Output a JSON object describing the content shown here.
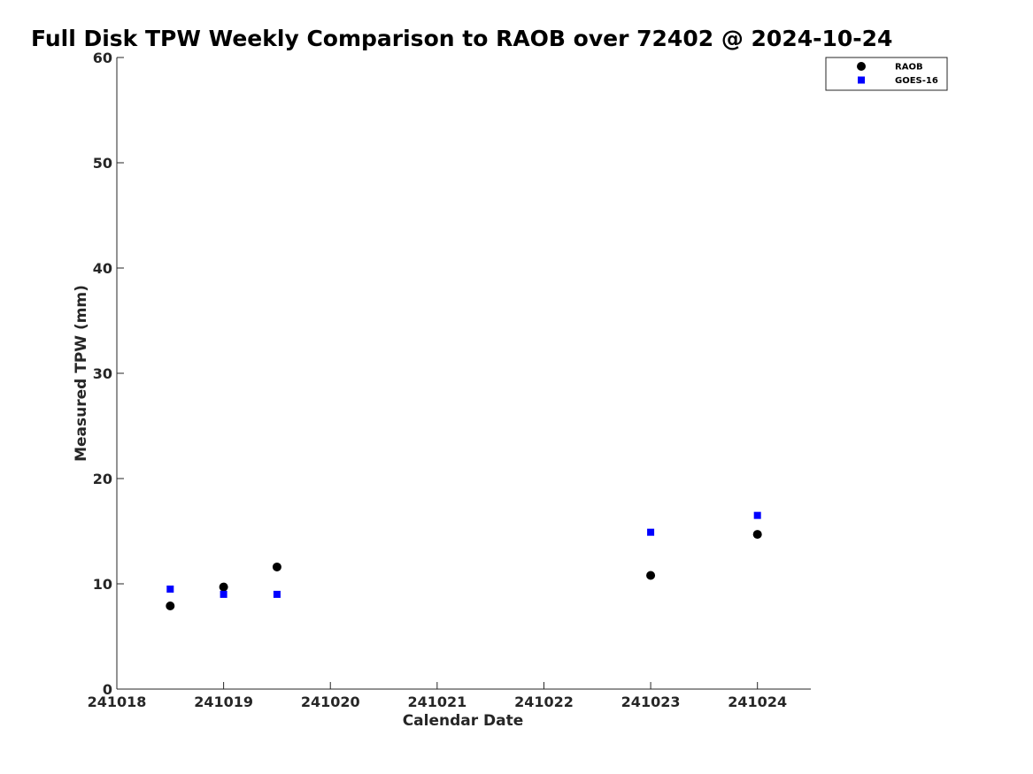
{
  "chart_data": {
    "type": "scatter",
    "title": "Full Disk TPW Weekly Comparison to RAOB over 72402 @ 2024-10-24",
    "xlabel": "Calendar Date",
    "ylabel": "Measured TPW (mm)",
    "xlim": [
      241018,
      241024.5
    ],
    "ylim": [
      0,
      60
    ],
    "x_ticks": [
      241018,
      241019,
      241020,
      241021,
      241022,
      241023,
      241024
    ],
    "x_tick_labels": [
      "241018",
      "241019",
      "241020",
      "241021",
      "241022",
      "241023",
      "241024"
    ],
    "y_ticks": [
      0,
      10,
      20,
      30,
      40,
      50,
      60
    ],
    "y_tick_labels": [
      "0",
      "10",
      "20",
      "30",
      "40",
      "50",
      "60"
    ],
    "grid": false,
    "legend_position": "top-right",
    "series": [
      {
        "name": "RAOB",
        "marker": "circle",
        "color": "#000000",
        "points": [
          {
            "x": 241018.5,
            "y": 7.9
          },
          {
            "x": 241019.0,
            "y": 9.7
          },
          {
            "x": 241019.5,
            "y": 11.6
          },
          {
            "x": 241023.0,
            "y": 10.8
          },
          {
            "x": 241024.0,
            "y": 14.7
          }
        ]
      },
      {
        "name": "GOES-16",
        "marker": "square",
        "color": "#0000ff",
        "points": [
          {
            "x": 241018.5,
            "y": 9.5
          },
          {
            "x": 241019.0,
            "y": 9.0
          },
          {
            "x": 241019.5,
            "y": 9.0
          },
          {
            "x": 241023.0,
            "y": 14.9
          },
          {
            "x": 241024.0,
            "y": 16.5
          }
        ]
      }
    ]
  }
}
